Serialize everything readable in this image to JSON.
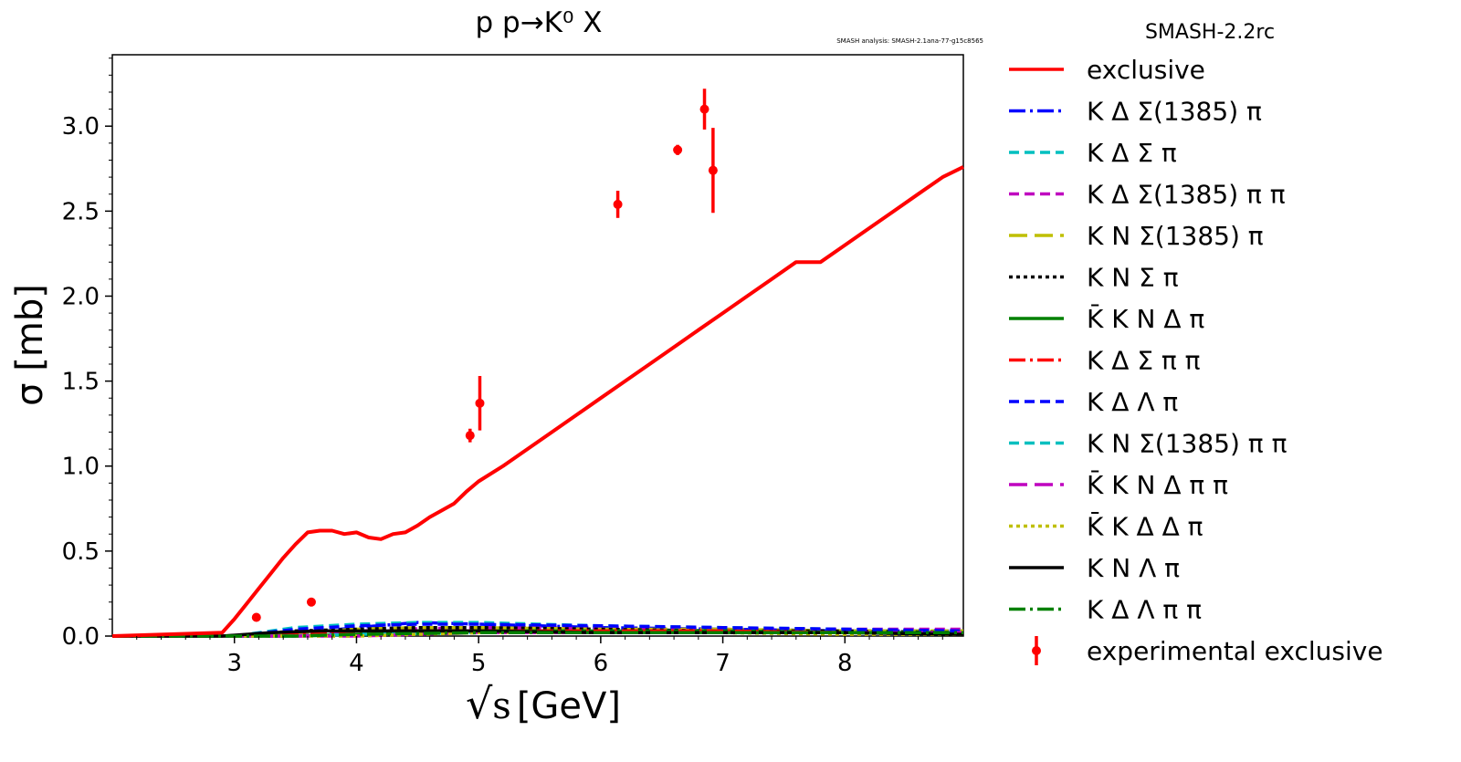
{
  "chart_data": {
    "type": "line",
    "title": "p p→K⁰ X",
    "watermark": "SMASH analysis: SMASH-2.1ana-77-g15c8565",
    "xlabel_radical": "√",
    "xlabel_var": "s",
    "xlabel_unit": "[GeV]",
    "ylabel": "σ [mb]",
    "xlim": [
      2.0,
      8.97
    ],
    "ylim": [
      0.0,
      3.42
    ],
    "xticks": [
      3,
      4,
      5,
      6,
      7,
      8
    ],
    "yticks": [
      0.0,
      0.5,
      1.0,
      1.5,
      2.0,
      2.5,
      3.0
    ],
    "ytick_labels": [
      "0.0",
      "0.5",
      "1.0",
      "1.5",
      "2.0",
      "2.5",
      "3.0"
    ],
    "legend_title": "SMASH-2.2rc",
    "legend_placement": "outside-right",
    "series": [
      {
        "name": "exclusive",
        "color": "#ff0000",
        "style": "solid",
        "x": [
          2.0,
          2.9,
          3.0,
          3.1,
          3.2,
          3.3,
          3.4,
          3.5,
          3.6,
          3.7,
          3.8,
          3.9,
          4.0,
          4.1,
          4.2,
          4.3,
          4.4,
          4.5,
          4.6,
          4.7,
          4.8,
          4.9,
          5.0,
          5.2,
          5.4,
          5.6,
          5.8,
          6.0,
          6.2,
          6.4,
          6.6,
          6.8,
          7.0,
          7.2,
          7.4,
          7.6,
          7.8,
          8.0,
          8.2,
          8.4,
          8.6,
          8.8,
          8.97
        ],
        "y": [
          0.0,
          0.02,
          0.1,
          0.19,
          0.28,
          0.37,
          0.46,
          0.54,
          0.61,
          0.62,
          0.62,
          0.6,
          0.61,
          0.58,
          0.57,
          0.6,
          0.61,
          0.65,
          0.7,
          0.74,
          0.78,
          0.85,
          0.91,
          1.0,
          1.1,
          1.2,
          1.3,
          1.4,
          1.5,
          1.6,
          1.7,
          1.8,
          1.9,
          2.0,
          2.1,
          2.2,
          2.2,
          2.3,
          2.4,
          2.5,
          2.6,
          2.7,
          2.76
        ]
      },
      {
        "name": "K Δ Σ(1385) π",
        "color": "#0000ff",
        "style": "dashdot",
        "x": [
          2.0,
          3.2,
          3.6,
          4.0,
          4.5,
          5.0,
          5.5,
          6.0,
          7.0,
          8.0,
          8.97
        ],
        "y": [
          0.0,
          0.0,
          0.02,
          0.05,
          0.08,
          0.07,
          0.06,
          0.05,
          0.04,
          0.03,
          0.03
        ]
      },
      {
        "name": "K Δ Σ π",
        "color": "#00bfbf",
        "style": "dash",
        "x": [
          2.0,
          3.0,
          3.5,
          4.0,
          4.5,
          5.0,
          5.5,
          6.0,
          7.0,
          8.0,
          8.97
        ],
        "y": [
          0.0,
          0.0,
          0.05,
          0.07,
          0.08,
          0.08,
          0.07,
          0.06,
          0.05,
          0.04,
          0.03
        ]
      },
      {
        "name": "K Δ Σ(1385) π π",
        "color": "#bf00bf",
        "style": "dash",
        "x": [
          2.0,
          3.3,
          3.8,
          4.3,
          5.0,
          5.5,
          6.0,
          7.0,
          8.0,
          8.97
        ],
        "y": [
          0.0,
          0.0,
          0.02,
          0.04,
          0.05,
          0.05,
          0.05,
          0.04,
          0.04,
          0.04
        ]
      },
      {
        "name": "K N Σ(1385) π",
        "color": "#bfbf00",
        "style": "longdash",
        "x": [
          2.0,
          3.0,
          3.5,
          4.0,
          4.5,
          5.0,
          6.0,
          7.0,
          8.0,
          8.97
        ],
        "y": [
          0.0,
          0.0,
          0.02,
          0.04,
          0.05,
          0.05,
          0.04,
          0.04,
          0.03,
          0.03
        ]
      },
      {
        "name": "K N Σ π",
        "color": "#000000",
        "style": "dotted",
        "x": [
          2.0,
          3.0,
          3.5,
          4.0,
          4.5,
          5.0,
          6.0,
          7.0,
          8.0,
          8.97
        ],
        "y": [
          0.0,
          0.0,
          0.03,
          0.04,
          0.05,
          0.05,
          0.04,
          0.03,
          0.03,
          0.02
        ]
      },
      {
        "name": "K̄ K N Δ π",
        "color": "#008000",
        "style": "solid",
        "x": [
          2.0,
          3.5,
          4.0,
          4.5,
          5.0,
          6.0,
          7.0,
          8.0,
          8.97
        ],
        "y": [
          0.0,
          0.0,
          0.01,
          0.02,
          0.03,
          0.03,
          0.03,
          0.02,
          0.02
        ]
      },
      {
        "name": "K Δ Σ π π",
        "color": "#ff0000",
        "style": "dashdot",
        "x": [
          2.0,
          3.2,
          3.7,
          4.2,
          5.0,
          6.0,
          7.0,
          8.0,
          8.97
        ],
        "y": [
          0.0,
          0.0,
          0.02,
          0.03,
          0.03,
          0.03,
          0.03,
          0.02,
          0.02
        ]
      },
      {
        "name": "K Δ Λ π",
        "color": "#0000ff",
        "style": "dash",
        "x": [
          2.0,
          3.0,
          3.5,
          4.0,
          4.5,
          5.0,
          6.0,
          7.0,
          8.0,
          8.97
        ],
        "y": [
          0.0,
          0.0,
          0.04,
          0.06,
          0.07,
          0.07,
          0.06,
          0.05,
          0.04,
          0.03
        ]
      },
      {
        "name": "K N Σ(1385) π π",
        "color": "#00bfbf",
        "style": "dash",
        "x": [
          2.0,
          3.5,
          4.0,
          5.0,
          6.0,
          7.0,
          8.0,
          8.97
        ],
        "y": [
          0.0,
          0.0,
          0.01,
          0.02,
          0.02,
          0.02,
          0.02,
          0.01
        ]
      },
      {
        "name": "K̄ K N Δ π π",
        "color": "#bf00bf",
        "style": "longdash",
        "x": [
          2.0,
          4.0,
          4.5,
          5.0,
          6.0,
          7.0,
          8.0,
          8.97
        ],
        "y": [
          0.0,
          0.0,
          0.01,
          0.02,
          0.02,
          0.02,
          0.02,
          0.02
        ]
      },
      {
        "name": "K̄ K Δ Δ π",
        "color": "#bfbf00",
        "style": "dotted",
        "x": [
          2.0,
          4.0,
          4.5,
          5.0,
          6.0,
          7.0,
          8.0,
          8.97
        ],
        "y": [
          0.0,
          0.0,
          0.01,
          0.02,
          0.02,
          0.02,
          0.01,
          0.01
        ]
      },
      {
        "name": "K N Λ π",
        "color": "#000000",
        "style": "solid",
        "x": [
          2.0,
          2.9,
          3.3,
          3.7,
          4.2,
          5.0,
          6.0,
          7.0,
          8.0,
          8.97
        ],
        "y": [
          0.0,
          0.0,
          0.02,
          0.03,
          0.03,
          0.03,
          0.02,
          0.02,
          0.02,
          0.01
        ]
      },
      {
        "name": "K Δ Λ π π",
        "color": "#008000",
        "style": "dashdot",
        "x": [
          2.0,
          3.5,
          4.0,
          5.0,
          6.0,
          7.0,
          8.0,
          8.97
        ],
        "y": [
          0.0,
          0.0,
          0.01,
          0.02,
          0.02,
          0.02,
          0.02,
          0.02
        ]
      }
    ],
    "experimental": {
      "name": "experimental exclusive",
      "color": "#ff0000",
      "points": [
        {
          "x": 3.18,
          "y": 0.11,
          "err": 0.01
        },
        {
          "x": 3.63,
          "y": 0.2,
          "err": 0.01
        },
        {
          "x": 4.93,
          "y": 1.18,
          "err": 0.04
        },
        {
          "x": 5.01,
          "y": 1.37,
          "err": 0.16
        },
        {
          "x": 6.14,
          "y": 2.54,
          "err": 0.08
        },
        {
          "x": 6.63,
          "y": 2.86,
          "err": 0.03
        },
        {
          "x": 6.85,
          "y": 3.1,
          "err": 0.12
        },
        {
          "x": 6.92,
          "y": 2.74,
          "err": 0.25
        }
      ]
    }
  }
}
